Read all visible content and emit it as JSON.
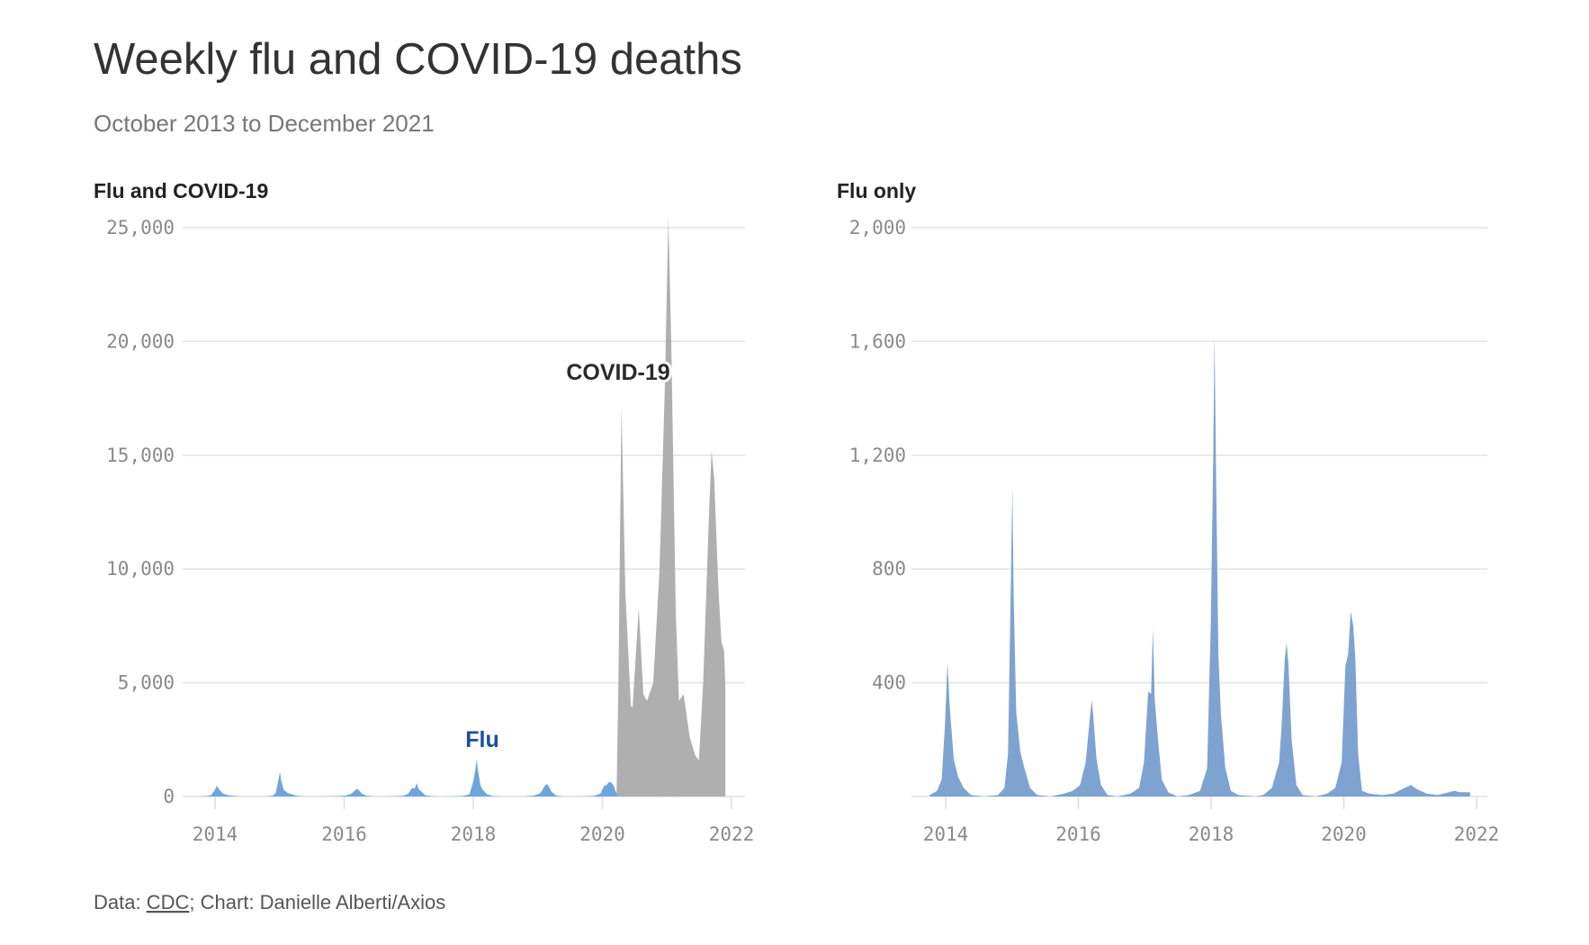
{
  "title": "Weekly flu and COVID-19 deaths",
  "subtitle": "October 2013 to December 2021",
  "footer": {
    "data_prefix": "Data: ",
    "source_link": "CDC",
    "credit": "; Chart: Danielle Alberti/Axios"
  },
  "colors": {
    "flu_left": "#6fa5dd",
    "flu_right": "#7ea3d0",
    "covid": "#ababab",
    "flu_label": "#1d4ea3"
  },
  "chart_data": [
    {
      "type": "area",
      "title": "Flu and COVID-19",
      "ylim": [
        0,
        25000
      ],
      "yticks": [
        0,
        5000,
        10000,
        15000,
        20000,
        25000
      ],
      "ytick_labels": [
        "0",
        "5,000",
        "10,000",
        "15,000",
        "20,000",
        "25,000"
      ],
      "xticks": [
        "2014",
        "2016",
        "2018",
        "2020",
        "2022"
      ],
      "xlim": [
        "2013-10-01",
        "2022-03-01"
      ],
      "grid": true,
      "annotations": [
        {
          "text": "COVID-19",
          "series": "covid"
        },
        {
          "text": "Flu",
          "series": "flu"
        }
      ],
      "series_ref": [
        "flu",
        "covid"
      ]
    },
    {
      "type": "area",
      "title": "Flu only",
      "ylim": [
        0,
        2000
      ],
      "yticks": [
        400,
        800,
        1200,
        1600,
        2000
      ],
      "ytick_labels": [
        "400",
        "800",
        "1,200",
        "1,600",
        "2,000"
      ],
      "xticks": [
        "2014",
        "2016",
        "2018",
        "2020",
        "2022"
      ],
      "xlim": [
        "2013-10-01",
        "2022-03-01"
      ],
      "grid": true,
      "series_ref": [
        "flu"
      ]
    }
  ],
  "series": {
    "flu": [
      [
        "2013-10-05",
        5
      ],
      [
        "2013-11-15",
        20
      ],
      [
        "2013-12-10",
        60
      ],
      [
        "2013-12-28",
        250
      ],
      [
        "2014-01-11",
        470
      ],
      [
        "2014-01-25",
        300
      ],
      [
        "2014-02-15",
        130
      ],
      [
        "2014-03-10",
        70
      ],
      [
        "2014-04-10",
        30
      ],
      [
        "2014-05-20",
        5
      ],
      [
        "2014-08-01",
        0
      ],
      [
        "2014-10-15",
        5
      ],
      [
        "2014-11-20",
        30
      ],
      [
        "2014-12-10",
        150
      ],
      [
        "2014-12-27",
        800
      ],
      [
        "2015-01-03",
        1090
      ],
      [
        "2015-01-10",
        700
      ],
      [
        "2015-01-24",
        300
      ],
      [
        "2015-02-15",
        160
      ],
      [
        "2015-03-10",
        100
      ],
      [
        "2015-04-10",
        30
      ],
      [
        "2015-05-20",
        5
      ],
      [
        "2015-08-01",
        0
      ],
      [
        "2015-10-15",
        10
      ],
      [
        "2015-12-01",
        20
      ],
      [
        "2016-01-10",
        40
      ],
      [
        "2016-02-10",
        120
      ],
      [
        "2016-03-05",
        280
      ],
      [
        "2016-03-15",
        340
      ],
      [
        "2016-03-25",
        270
      ],
      [
        "2016-04-10",
        130
      ],
      [
        "2016-05-05",
        40
      ],
      [
        "2016-06-10",
        5
      ],
      [
        "2016-08-01",
        0
      ],
      [
        "2016-10-15",
        10
      ],
      [
        "2016-12-01",
        30
      ],
      [
        "2016-12-28",
        120
      ],
      [
        "2017-01-20",
        370
      ],
      [
        "2017-02-05",
        360
      ],
      [
        "2017-02-15",
        590
      ],
      [
        "2017-02-25",
        340
      ],
      [
        "2017-03-15",
        200
      ],
      [
        "2017-04-05",
        60
      ],
      [
        "2017-05-10",
        15
      ],
      [
        "2017-07-01",
        0
      ],
      [
        "2017-09-01",
        5
      ],
      [
        "2017-11-01",
        20
      ],
      [
        "2017-12-10",
        100
      ],
      [
        "2017-12-30",
        600
      ],
      [
        "2018-01-13",
        1200
      ],
      [
        "2018-01-20",
        1620
      ],
      [
        "2018-01-27",
        1200
      ],
      [
        "2018-02-10",
        500
      ],
      [
        "2018-02-24",
        290
      ],
      [
        "2018-03-20",
        100
      ],
      [
        "2018-04-20",
        20
      ],
      [
        "2018-06-01",
        5
      ],
      [
        "2018-09-01",
        0
      ],
      [
        "2018-10-15",
        5
      ],
      [
        "2018-12-01",
        30
      ],
      [
        "2019-01-10",
        120
      ],
      [
        "2019-01-25",
        260
      ],
      [
        "2019-02-10",
        480
      ],
      [
        "2019-02-20",
        540
      ],
      [
        "2019-03-02",
        470
      ],
      [
        "2019-03-20",
        200
      ],
      [
        "2019-04-15",
        40
      ],
      [
        "2019-05-20",
        5
      ],
      [
        "2019-08-01",
        0
      ],
      [
        "2019-10-01",
        10
      ],
      [
        "2019-11-15",
        30
      ],
      [
        "2019-12-20",
        120
      ],
      [
        "2020-01-10",
        460
      ],
      [
        "2020-01-25",
        500
      ],
      [
        "2020-02-08",
        650
      ],
      [
        "2020-02-22",
        600
      ],
      [
        "2020-03-05",
        480
      ],
      [
        "2020-03-20",
        150
      ],
      [
        "2020-04-10",
        20
      ],
      [
        "2020-05-20",
        10
      ],
      [
        "2020-08-01",
        5
      ],
      [
        "2020-10-01",
        10
      ],
      [
        "2020-12-01",
        30
      ],
      [
        "2021-01-05",
        40
      ],
      [
        "2021-02-10",
        25
      ],
      [
        "2021-04-01",
        10
      ],
      [
        "2021-06-01",
        5
      ],
      [
        "2021-09-01",
        20
      ],
      [
        "2021-10-01",
        15
      ],
      [
        "2021-11-27",
        15
      ]
    ],
    "covid": [
      [
        "2020-03-21",
        0
      ],
      [
        "2020-04-01",
        5000
      ],
      [
        "2020-04-18",
        17200
      ],
      [
        "2020-05-10",
        9000
      ],
      [
        "2020-06-10",
        4000
      ],
      [
        "2020-06-20",
        3900
      ],
      [
        "2020-07-25",
        8300
      ],
      [
        "2020-08-20",
        4500
      ],
      [
        "2020-09-10",
        4200
      ],
      [
        "2020-10-15",
        5000
      ],
      [
        "2020-11-20",
        10000
      ],
      [
        "2020-12-20",
        18000
      ],
      [
        "2021-01-09",
        25500
      ],
      [
        "2021-01-25",
        20000
      ],
      [
        "2021-02-20",
        8000
      ],
      [
        "2021-03-10",
        4200
      ],
      [
        "2021-04-05",
        4500
      ],
      [
        "2021-05-10",
        2600
      ],
      [
        "2021-06-10",
        1800
      ],
      [
        "2021-07-01",
        1600
      ],
      [
        "2021-07-25",
        5000
      ],
      [
        "2021-08-25",
        12000
      ],
      [
        "2021-09-10",
        15200
      ],
      [
        "2021-09-25",
        14000
      ],
      [
        "2021-10-20",
        9000
      ],
      [
        "2021-11-05",
        6800
      ],
      [
        "2021-11-20",
        6400
      ],
      [
        "2021-11-27",
        5000
      ]
    ]
  }
}
